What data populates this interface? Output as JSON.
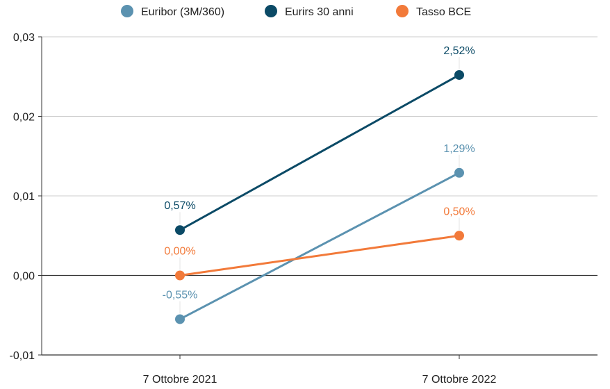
{
  "chart_data": {
    "type": "line",
    "categories": [
      "7 Ottobre 2021",
      "7 Ottobre 2022"
    ],
    "series": [
      {
        "name": "Euribor (3M/360)",
        "color": "#5b92b0",
        "values": [
          -0.0055,
          0.0129
        ],
        "labels": [
          "-0,55%",
          "1,29%"
        ]
      },
      {
        "name": "Eurirs 30 anni",
        "color": "#0b4a66",
        "values": [
          0.0057,
          0.0252
        ],
        "labels": [
          "0,57%",
          "2,52%"
        ]
      },
      {
        "name": "Tasso BCE",
        "color": "#f27a3a",
        "values": [
          0.0,
          0.005
        ],
        "labels": [
          "0,00%",
          "0,50%"
        ]
      }
    ],
    "ylim": [
      -0.01,
      0.03
    ],
    "yticks": [
      "-0,01",
      "0,00",
      "0,01",
      "0,02",
      "0,03"
    ],
    "ytick_values": [
      -0.01,
      0.0,
      0.01,
      0.02,
      0.03
    ],
    "grid": true,
    "legend_position": "top"
  }
}
